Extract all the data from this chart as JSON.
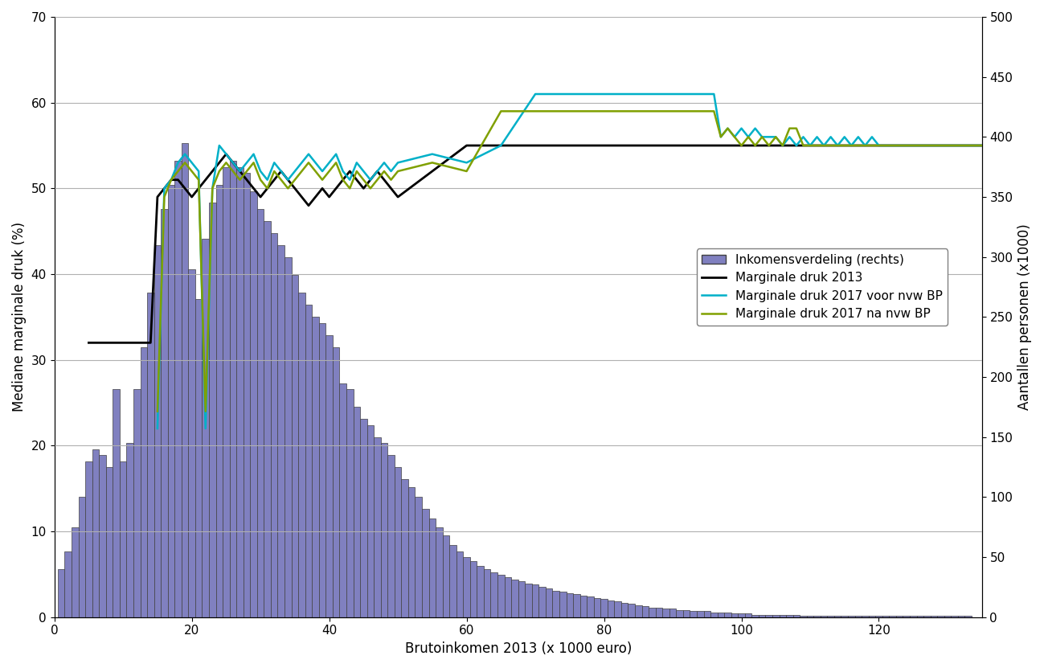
{
  "xlabel": "Brutoinkomen 2013 (x 1000 euro)",
  "ylabel_left": "Mediane marginale druk (%)",
  "ylabel_right": "Aantallen personen (x1000)",
  "xlim": [
    0,
    135
  ],
  "ylim_left": [
    0,
    70
  ],
  "ylim_right": [
    0,
    500
  ],
  "yticks_left": [
    0,
    10,
    20,
    30,
    40,
    50,
    60,
    70
  ],
  "yticks_right": [
    0,
    50,
    100,
    150,
    200,
    250,
    300,
    350,
    400,
    450,
    500
  ],
  "xticks": [
    0,
    20,
    40,
    60,
    80,
    100,
    120
  ],
  "bar_color": "#8080c0",
  "bar_edgecolor": "#404040",
  "bar_x": [
    1,
    2,
    3,
    4,
    5,
    6,
    7,
    8,
    9,
    10,
    11,
    12,
    13,
    14,
    15,
    16,
    17,
    18,
    19,
    20,
    21,
    22,
    23,
    24,
    25,
    26,
    27,
    28,
    29,
    30,
    31,
    32,
    33,
    34,
    35,
    36,
    37,
    38,
    39,
    40,
    41,
    42,
    43,
    44,
    45,
    46,
    47,
    48,
    49,
    50,
    51,
    52,
    53,
    54,
    55,
    56,
    57,
    58,
    59,
    60,
    61,
    62,
    63,
    64,
    65,
    66,
    67,
    68,
    69,
    70,
    71,
    72,
    73,
    74,
    75,
    76,
    77,
    78,
    79,
    80,
    81,
    82,
    83,
    84,
    85,
    86,
    87,
    88,
    89,
    90,
    91,
    92,
    93,
    94,
    95,
    96,
    97,
    98,
    99,
    100,
    101,
    102,
    103,
    104,
    105,
    106,
    107,
    108,
    109,
    110,
    111,
    112,
    113,
    114,
    115,
    116,
    117,
    118,
    119,
    120,
    121,
    122,
    123,
    124,
    125,
    126,
    127,
    128,
    129,
    130,
    131,
    132,
    133
  ],
  "bar_heights_in_thousands": [
    40,
    55,
    75,
    100,
    130,
    140,
    135,
    125,
    190,
    130,
    145,
    190,
    225,
    270,
    310,
    340,
    360,
    380,
    395,
    290,
    265,
    315,
    345,
    360,
    375,
    380,
    375,
    370,
    355,
    340,
    330,
    320,
    310,
    300,
    285,
    270,
    260,
    250,
    245,
    235,
    225,
    195,
    190,
    175,
    165,
    160,
    150,
    145,
    135,
    125,
    115,
    108,
    100,
    90,
    82,
    75,
    68,
    60,
    55,
    50,
    47,
    43,
    40,
    37,
    35,
    33,
    31,
    30,
    28,
    27,
    25,
    24,
    22,
    21,
    20,
    19,
    18,
    17,
    16,
    15,
    14,
    13,
    12,
    11,
    10,
    9,
    8,
    8,
    7,
    7,
    6,
    6,
    5,
    5,
    5,
    4,
    4,
    4,
    3,
    3,
    3,
    2,
    2,
    2,
    2,
    2,
    2,
    2,
    1,
    1,
    1,
    1,
    1,
    1,
    1,
    1,
    1,
    1,
    1,
    1,
    1,
    1,
    1,
    1,
    1,
    1,
    1,
    1,
    1,
    1,
    1,
    1,
    1
  ],
  "line_black_x": [
    5,
    10,
    14,
    15,
    16,
    17,
    18,
    19,
    20,
    21,
    22,
    23,
    24,
    25,
    26,
    27,
    28,
    29,
    30,
    31,
    32,
    33,
    34,
    35,
    36,
    37,
    38,
    39,
    40,
    41,
    42,
    43,
    44,
    45,
    46,
    47,
    48,
    49,
    50,
    55,
    60,
    65,
    70,
    75,
    80,
    85,
    90,
    95,
    100,
    105,
    110,
    115,
    120,
    125,
    130,
    135
  ],
  "line_black_y": [
    32,
    32,
    32,
    49,
    50,
    51,
    51,
    50,
    49,
    50,
    51,
    52,
    53,
    54,
    53,
    52,
    51,
    50,
    49,
    50,
    51,
    52,
    51,
    50,
    49,
    48,
    49,
    50,
    49,
    50,
    51,
    52,
    51,
    50,
    51,
    52,
    51,
    50,
    49,
    52,
    55,
    55,
    55,
    55,
    55,
    55,
    55,
    55,
    55,
    55,
    55,
    55,
    55,
    55,
    55,
    55
  ],
  "line_cyan_x": [
    15,
    16,
    17,
    18,
    19,
    20,
    21,
    22,
    23,
    24,
    25,
    26,
    27,
    28,
    29,
    30,
    31,
    32,
    33,
    34,
    35,
    36,
    37,
    38,
    39,
    40,
    41,
    42,
    43,
    44,
    45,
    46,
    47,
    48,
    49,
    50,
    55,
    60,
    65,
    70,
    71,
    72,
    73,
    74,
    75,
    76,
    77,
    78,
    79,
    80,
    81,
    82,
    83,
    84,
    85,
    86,
    87,
    88,
    89,
    90,
    91,
    92,
    93,
    94,
    95,
    96,
    97,
    98,
    99,
    100,
    101,
    102,
    103,
    104,
    105,
    106,
    107,
    108,
    109,
    110,
    111,
    112,
    113,
    114,
    115,
    116,
    117,
    118,
    119,
    120,
    121,
    122,
    123,
    124,
    125,
    126,
    127,
    128,
    129,
    130,
    131,
    132,
    133,
    134,
    135
  ],
  "line_cyan_y": [
    22,
    50,
    51,
    53,
    54,
    53,
    52,
    22,
    50,
    55,
    54,
    53,
    52,
    53,
    54,
    52,
    51,
    53,
    52,
    51,
    52,
    53,
    54,
    53,
    52,
    53,
    54,
    52,
    51,
    53,
    52,
    51,
    52,
    53,
    52,
    53,
    54,
    53,
    55,
    61,
    61,
    61,
    61,
    61,
    61,
    61,
    61,
    61,
    61,
    61,
    61,
    61,
    61,
    61,
    61,
    61,
    61,
    61,
    61,
    61,
    61,
    61,
    61,
    61,
    61,
    61,
    56,
    57,
    56,
    57,
    56,
    57,
    56,
    56,
    56,
    55,
    56,
    55,
    56,
    55,
    56,
    55,
    56,
    55,
    56,
    55,
    56,
    55,
    56,
    55,
    55,
    55,
    55,
    55,
    55,
    55,
    55,
    55,
    55,
    55,
    55,
    55,
    55,
    55,
    55
  ],
  "line_green_x": [
    15,
    16,
    17,
    18,
    19,
    20,
    21,
    22,
    23,
    24,
    25,
    26,
    27,
    28,
    29,
    30,
    31,
    32,
    33,
    34,
    35,
    36,
    37,
    38,
    39,
    40,
    41,
    42,
    43,
    44,
    45,
    46,
    47,
    48,
    49,
    50,
    55,
    60,
    65,
    70,
    71,
    72,
    73,
    74,
    75,
    76,
    77,
    78,
    79,
    80,
    81,
    82,
    83,
    84,
    85,
    86,
    87,
    88,
    89,
    90,
    91,
    92,
    93,
    94,
    95,
    96,
    97,
    98,
    99,
    100,
    101,
    102,
    103,
    104,
    105,
    106,
    107,
    108,
    109,
    110,
    111,
    112,
    113,
    114,
    115,
    116,
    117,
    118,
    119,
    120,
    121,
    122,
    123,
    124,
    125,
    126,
    127,
    128,
    129,
    130,
    131,
    132,
    133,
    134,
    135
  ],
  "line_green_y": [
    24,
    49,
    51,
    52,
    53,
    52,
    51,
    24,
    50,
    52,
    53,
    52,
    51,
    52,
    53,
    51,
    50,
    52,
    51,
    50,
    51,
    52,
    53,
    52,
    51,
    52,
    53,
    51,
    50,
    52,
    51,
    50,
    51,
    52,
    51,
    52,
    53,
    52,
    59,
    59,
    59,
    59,
    59,
    59,
    59,
    59,
    59,
    59,
    59,
    59,
    59,
    59,
    59,
    59,
    59,
    59,
    59,
    59,
    59,
    59,
    59,
    59,
    59,
    59,
    59,
    59,
    56,
    57,
    56,
    55,
    56,
    55,
    56,
    55,
    56,
    55,
    57,
    57,
    55,
    55,
    55,
    55,
    55,
    55,
    55,
    55,
    55,
    55,
    55,
    55,
    55,
    55,
    55,
    55,
    55,
    55,
    55,
    55,
    55,
    55,
    55,
    55,
    55,
    55,
    55
  ],
  "legend_labels": [
    "Inkomensverdeling (rechts)",
    "Marginale druk 2013",
    "Marginale druk 2017 voor nvw BP",
    "Marginale druk 2017 na nvw BP"
  ],
  "legend_colors": [
    "#8080c0",
    "#000000",
    "#00b0c8",
    "#80a000"
  ]
}
